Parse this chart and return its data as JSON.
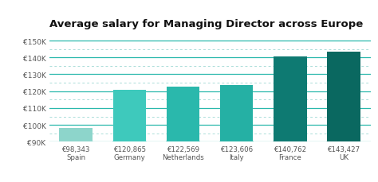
{
  "title": "Average salary for Managing Director across Europe",
  "categories": [
    "Spain",
    "Germany",
    "Netherlands",
    "Italy",
    "France",
    "UK"
  ],
  "values": [
    98343,
    120865,
    122569,
    123606,
    140762,
    143427
  ],
  "labels": [
    "€98,343",
    "€120,865",
    "€122,569",
    "€123,606",
    "€140,762",
    "€143,427"
  ],
  "bar_colors": [
    "#8dd5cb",
    "#3ec9bc",
    "#2ab8ac",
    "#25b0a4",
    "#0e7a72",
    "#0a6860"
  ],
  "ylim_min": 90000,
  "ylim_max": 155000,
  "yticks": [
    90000,
    100000,
    110000,
    120000,
    130000,
    140000,
    150000
  ],
  "ytick_labels": [
    "€90K",
    "€100K",
    "€110K",
    "€120K",
    "€130K",
    "€140K",
    "€150K"
  ],
  "background_color": "#ffffff",
  "solid_grid_color": "#2ab8ac",
  "dashed_grid_color": "#aaddd9",
  "title_fontsize": 9.5,
  "tick_fontsize": 6.5,
  "label_fontsize": 6.2,
  "bar_bottom": 90000,
  "bar_width": 0.62
}
